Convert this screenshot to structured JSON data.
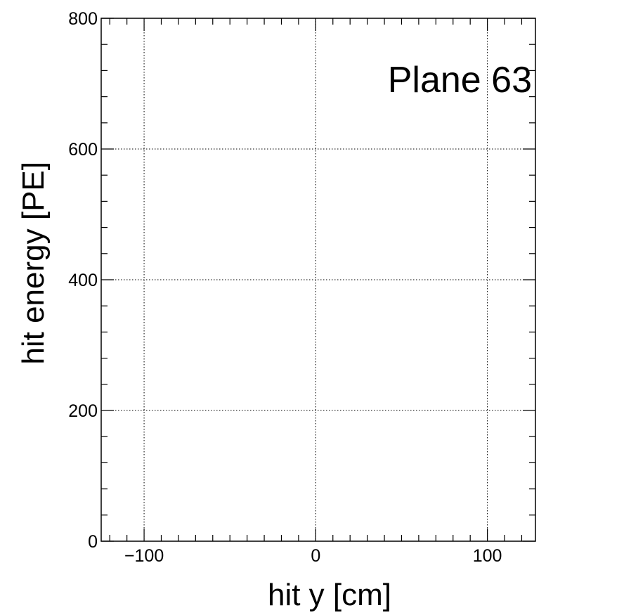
{
  "chart_data": {
    "type": "scatter",
    "title": "",
    "annotation": "Plane 63",
    "xlabel": "hit y [cm]",
    "ylabel": "hit energy [PE]",
    "xlim": [
      -125,
      128
    ],
    "ylim": [
      0,
      800
    ],
    "x_ticks": [
      -100,
      0,
      100
    ],
    "x_tick_labels": [
      "−100",
      "0",
      "100"
    ],
    "y_ticks": [
      0,
      200,
      400,
      600,
      800
    ],
    "y_tick_labels": [
      "0",
      "200",
      "400",
      "600",
      "800"
    ],
    "grid": true,
    "series": [
      {
        "x": [],
        "y": []
      }
    ]
  }
}
